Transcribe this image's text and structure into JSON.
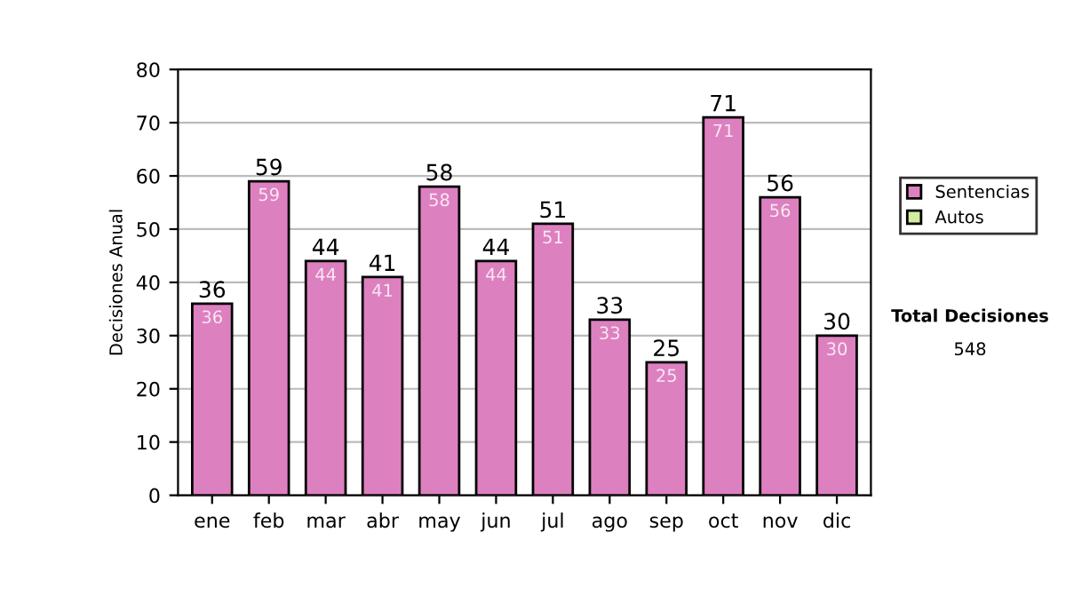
{
  "chart_data": {
    "type": "bar",
    "stacked": true,
    "ylabel": "Decisiones Anual",
    "categories": [
      "ene",
      "feb",
      "mar",
      "abr",
      "may",
      "jun",
      "jul",
      "ago",
      "sep",
      "oct",
      "nov",
      "dic"
    ],
    "series": [
      {
        "name": "Sentencias",
        "color": "#dd80c0",
        "values": [
          36,
          59,
          44,
          41,
          58,
          44,
          51,
          33,
          25,
          71,
          56,
          30
        ],
        "value_labels": [
          "36",
          "59",
          "44",
          "41",
          "58",
          "44",
          "51",
          "33",
          "25",
          "71",
          "56",
          "30"
        ]
      },
      {
        "name": "Autos",
        "color": "#d4eca0",
        "values": [
          null,
          null,
          null,
          null,
          null,
          null,
          null,
          null,
          null,
          null,
          null,
          null
        ]
      }
    ],
    "totals": [
      "36",
      "59",
      "44",
      "41",
      "58",
      "44",
      "51",
      "33",
      "25",
      "71",
      "56",
      "30"
    ],
    "ylim": [
      0,
      80
    ],
    "yticks": [
      0,
      10,
      20,
      30,
      40,
      50,
      60,
      70,
      80
    ],
    "grid": "y",
    "legend": "right",
    "annotations": [
      "Total Decisiones",
      "548"
    ]
  }
}
